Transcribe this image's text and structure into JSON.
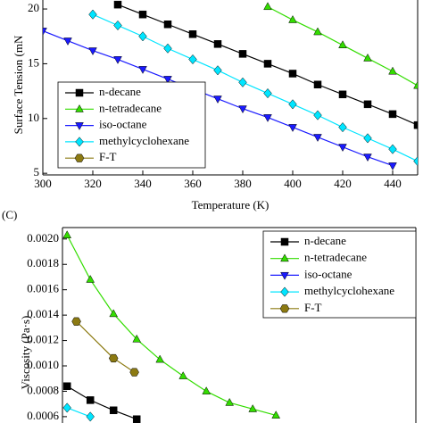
{
  "chart_data": [
    {
      "type": "line",
      "ylabel": "Surface Tension (mN",
      "xlabel": "Temperature (K)",
      "xlim": [
        300,
        450
      ],
      "xticks": [
        300,
        320,
        340,
        360,
        380,
        400,
        420,
        440
      ],
      "ylim": [
        4.85,
        20.82
      ],
      "yticks": [
        5,
        10,
        15,
        20
      ],
      "legend": "lower left",
      "series": [
        {
          "name": "n-decane",
          "color": "#000000",
          "marker": "square",
          "x": [
            330,
            340,
            350,
            360,
            370,
            380,
            390,
            400,
            410,
            420,
            430,
            440,
            450
          ],
          "values": [
            20.4,
            19.5,
            18.6,
            17.7,
            16.8,
            15.9,
            15.0,
            14.1,
            13.1,
            12.2,
            11.3,
            10.4,
            9.4
          ]
        },
        {
          "name": "n-tetradecane",
          "color": "#33dd00",
          "marker": "triangle-up",
          "x": [
            390,
            400,
            410,
            420,
            430,
            440,
            450
          ],
          "values": [
            20.2,
            19.0,
            17.9,
            16.7,
            15.5,
            14.3,
            13.0
          ]
        },
        {
          "name": "iso-octane",
          "color": "#1a1aff",
          "marker": "triangle-down",
          "x": [
            300,
            310,
            320,
            330,
            340,
            350,
            360,
            370,
            380,
            390,
            400,
            410,
            420,
            430,
            440
          ],
          "values": [
            18.0,
            17.1,
            16.2,
            15.4,
            14.5,
            13.6,
            12.7,
            11.8,
            10.9,
            10.1,
            9.2,
            8.3,
            7.4,
            6.5,
            5.7
          ]
        },
        {
          "name": "methylcyclohexane",
          "color": "#00e5ff",
          "marker": "diamond",
          "x": [
            320,
            330,
            340,
            350,
            360,
            370,
            380,
            390,
            400,
            410,
            420,
            430,
            440,
            450
          ],
          "values": [
            19.5,
            18.5,
            17.5,
            16.4,
            15.4,
            14.4,
            13.3,
            12.3,
            11.3,
            10.3,
            9.2,
            8.2,
            7.2,
            6.1
          ]
        },
        {
          "name": "F-T",
          "color": "#8c7a12",
          "marker": "hexagon",
          "x": [],
          "values": []
        }
      ]
    },
    {
      "type": "line",
      "label": "(C)",
      "ylabel": "Viscosity (Pa·s)",
      "xlim": [
        298,
        450.3
      ],
      "ylim": [
        0.00055,
        0.00209
      ],
      "yticks": [
        {
          "value": 0.0006,
          "label": "0.0006"
        },
        {
          "value": 0.0008,
          "label": "0.0008"
        },
        {
          "value": 0.001,
          "label": "0.0010"
        },
        {
          "value": 0.0012,
          "label": "0.0012"
        },
        {
          "value": 0.0014,
          "label": "0.0014"
        },
        {
          "value": 0.0016,
          "label": "0.0016"
        },
        {
          "value": 0.0018,
          "label": "0.0018"
        },
        {
          "value": 0.002,
          "label": "0.0020"
        }
      ],
      "legend": "upper right",
      "series": [
        {
          "name": "n-decane",
          "color": "#000000",
          "marker": "square",
          "x": [
            300,
            310,
            320,
            330
          ],
          "values": [
            0.00084,
            0.00073,
            0.00065,
            0.00058
          ]
        },
        {
          "name": "n-tetradecane",
          "color": "#33dd00",
          "marker": "triangle-up",
          "x": [
            300,
            310,
            320,
            330,
            340,
            350,
            360,
            370,
            380,
            390
          ],
          "values": [
            0.00203,
            0.00168,
            0.00141,
            0.00121,
            0.00105,
            0.00092,
            0.0008,
            0.00071,
            0.00066,
            0.00061
          ]
        },
        {
          "name": "iso-octane",
          "color": "#1a1aff",
          "marker": "triangle-down",
          "x": [],
          "values": []
        },
        {
          "name": "methylcyclohexane",
          "color": "#00e5ff",
          "marker": "diamond",
          "x": [
            300,
            310
          ],
          "values": [
            0.00067,
            0.0006
          ]
        },
        {
          "name": "F-T",
          "color": "#8c7a12",
          "marker": "hexagon",
          "x": [
            304,
            320,
            329
          ],
          "values": [
            0.00135,
            0.00106,
            0.00095
          ]
        }
      ]
    }
  ]
}
